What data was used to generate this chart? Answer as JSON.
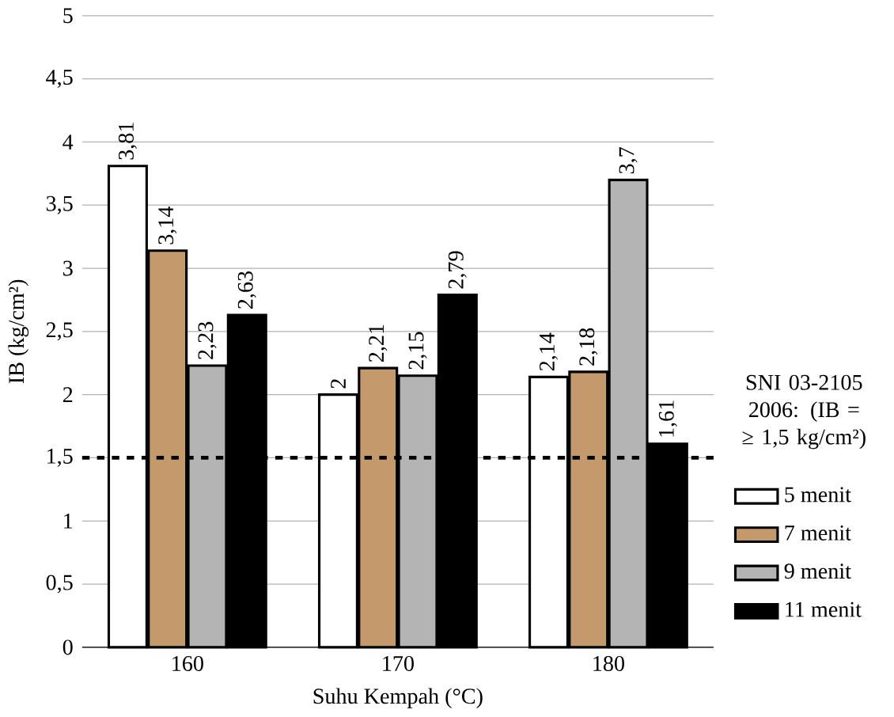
{
  "chart_data": {
    "type": "bar",
    "xlabel": "Suhu Kempah (°C)",
    "ylabel": "IB (kg/cm²)",
    "categories": [
      "160",
      "170",
      "180"
    ],
    "series": [
      {
        "name": "5 menit",
        "color": "#ffffff",
        "values": [
          3.81,
          2,
          2.14
        ],
        "value_labels": [
          "3,81",
          "2",
          "2,14"
        ]
      },
      {
        "name": "7 menit",
        "color": "#c49a6c",
        "values": [
          3.14,
          2.21,
          2.18
        ],
        "value_labels": [
          "3,14",
          "2,21",
          "2,18"
        ]
      },
      {
        "name": "9 menit",
        "color": "#b4b4b4",
        "values": [
          2.23,
          2.15,
          3.7
        ],
        "value_labels": [
          "2,23",
          "2,15",
          "3,7"
        ]
      },
      {
        "name": "11 menit",
        "color": "#000000",
        "values": [
          2.63,
          2.79,
          1.61
        ],
        "value_labels": [
          "2,63",
          "2,79",
          "1,61"
        ]
      }
    ],
    "ylim": [
      0,
      5
    ],
    "yticks": [
      0,
      {
        "value": 0.5,
        "label": "0,5"
      },
      1,
      {
        "value": 1.5,
        "label": "1,5"
      },
      2,
      {
        "value": 2.5,
        "label": "2,5"
      },
      3,
      {
        "value": 3.5,
        "label": "3,5"
      },
      4,
      {
        "value": 4.5,
        "label": "4,5"
      },
      5
    ],
    "grid": "y",
    "legend": "right",
    "ref_lines": [
      {
        "axis": "y",
        "value": 1.5,
        "label": "SNI 03-2105 2006: (IB = ≥ 1,5 kg/cm²)",
        "line_style": "dashed",
        "color": "#000000"
      }
    ]
  }
}
